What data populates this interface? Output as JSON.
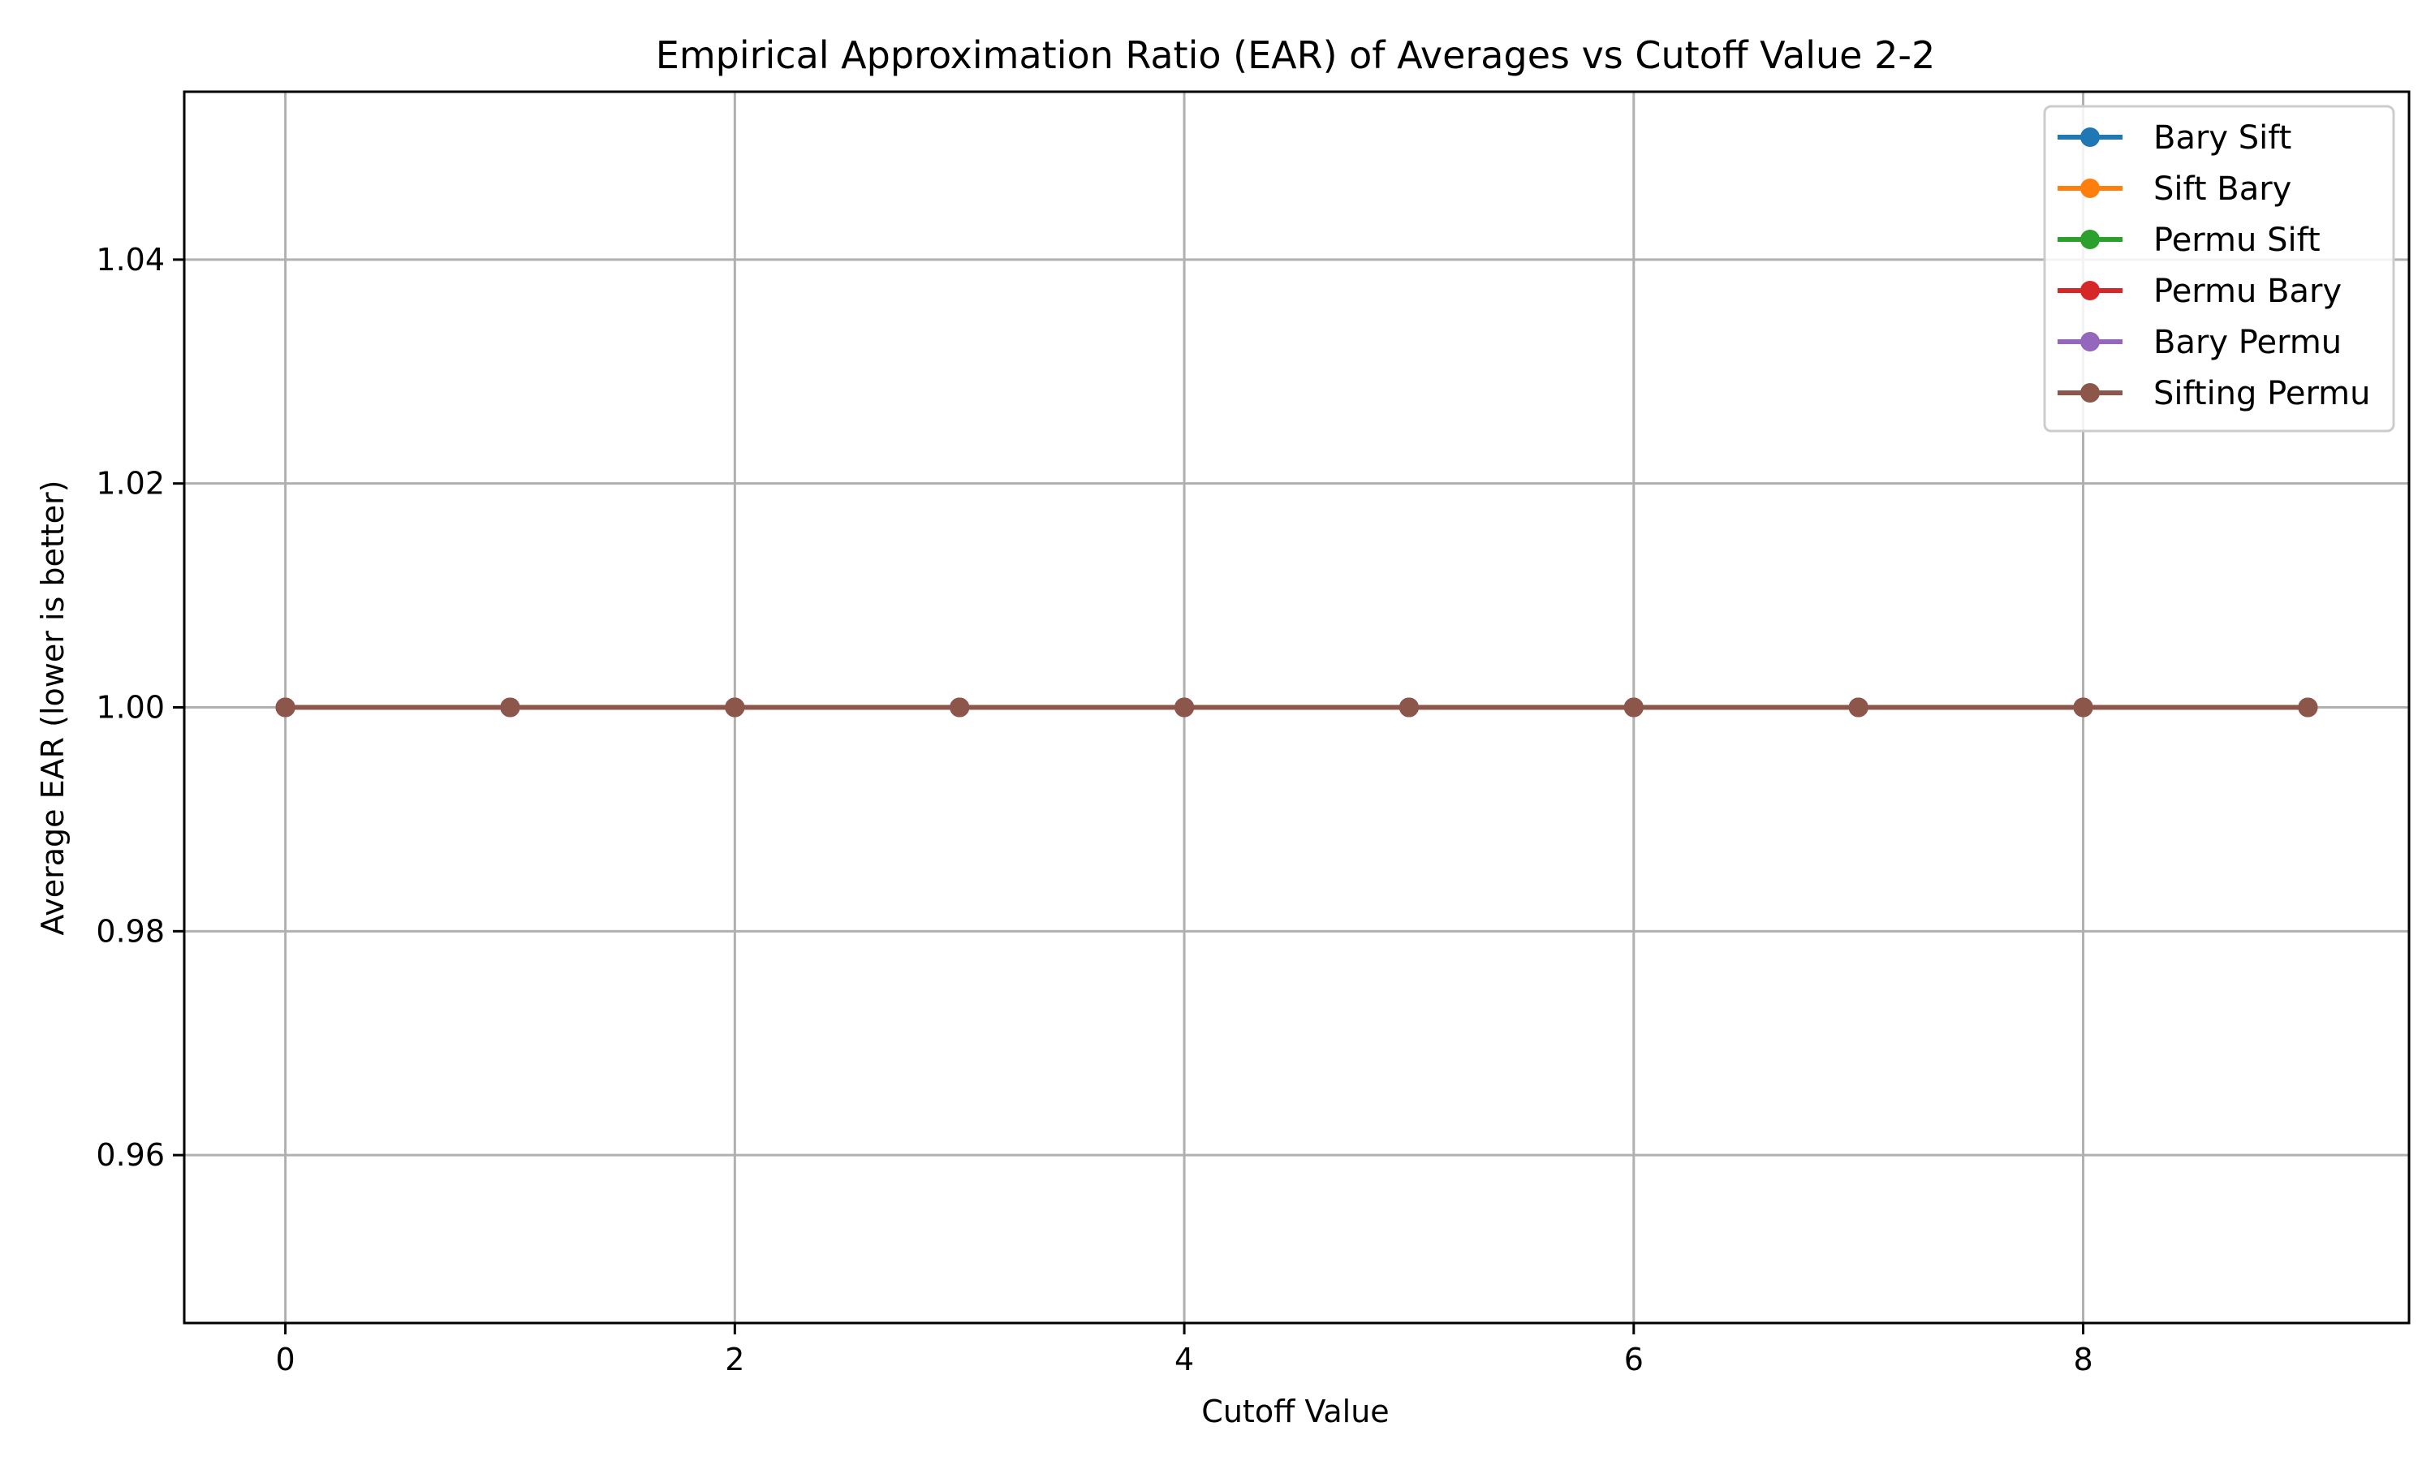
{
  "chart_data": {
    "type": "line",
    "title": "Empirical Approximation Ratio (EAR) of Averages vs Cutoff Value 2-2",
    "xlabel": "Cutoff Value",
    "ylabel": "Average EAR (lower is better)",
    "x": [
      0,
      1,
      2,
      3,
      4,
      5,
      6,
      7,
      8,
      9
    ],
    "xlim": [
      -0.45,
      9.45
    ],
    "ylim": [
      0.945,
      1.055
    ],
    "xticks": [
      0,
      2,
      4,
      6,
      8
    ],
    "xtick_labels": [
      "0",
      "2",
      "4",
      "6",
      "8"
    ],
    "yticks": [
      0.96,
      0.98,
      1.0,
      1.02,
      1.04
    ],
    "ytick_labels": [
      "0.96",
      "0.98",
      "1.00",
      "1.02",
      "1.04"
    ],
    "grid": true,
    "legend_position": "top-right",
    "series": [
      {
        "name": "Bary Sift",
        "color": "#1f77b4",
        "values": [
          1,
          1,
          1,
          1,
          1,
          1,
          1,
          1,
          1,
          1
        ]
      },
      {
        "name": "Sift Bary",
        "color": "#ff7f0e",
        "values": [
          1,
          1,
          1,
          1,
          1,
          1,
          1,
          1,
          1,
          1
        ]
      },
      {
        "name": "Permu Sift",
        "color": "#2ca02c",
        "values": [
          1,
          1,
          1,
          1,
          1,
          1,
          1,
          1,
          1,
          1
        ]
      },
      {
        "name": "Permu Bary",
        "color": "#d62728",
        "values": [
          1,
          1,
          1,
          1,
          1,
          1,
          1,
          1,
          1,
          1
        ]
      },
      {
        "name": "Bary Permu",
        "color": "#9467bd",
        "values": [
          1,
          1,
          1,
          1,
          1,
          1,
          1,
          1,
          1,
          1
        ]
      },
      {
        "name": "Sifting Permu",
        "color": "#8c564b",
        "values": [
          1,
          1,
          1,
          1,
          1,
          1,
          1,
          1,
          1,
          1
        ]
      }
    ]
  }
}
